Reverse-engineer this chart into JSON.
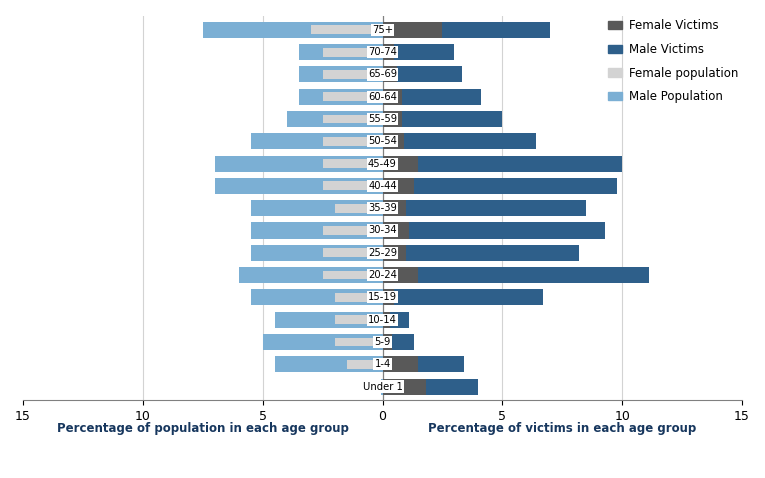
{
  "age_groups": [
    "Under 1",
    "1-4",
    "5-9",
    "10-14",
    "15-19",
    "20-24",
    "25-29",
    "30-34",
    "35-39",
    "40-44",
    "45-49",
    "50-54",
    "55-59",
    "60-64",
    "65-69",
    "70-74",
    "75+"
  ],
  "male_population": [
    0.05,
    4.5,
    5.0,
    4.5,
    5.5,
    6.0,
    5.5,
    5.5,
    5.5,
    7.0,
    7.0,
    5.5,
    4.0,
    3.5,
    3.5,
    3.5,
    7.5
  ],
  "female_population": [
    0.05,
    1.5,
    2.0,
    2.0,
    2.0,
    2.5,
    2.5,
    2.5,
    2.0,
    2.5,
    2.5,
    2.5,
    2.5,
    2.5,
    2.5,
    2.5,
    3.0
  ],
  "female_victims": [
    1.8,
    1.5,
    0.4,
    0.3,
    0.5,
    1.5,
    1.0,
    1.1,
    1.0,
    1.3,
    1.5,
    0.9,
    0.8,
    0.8,
    0.6,
    0.5,
    2.5
  ],
  "male_victims": [
    2.2,
    1.9,
    0.9,
    0.8,
    6.2,
    9.6,
    7.2,
    8.2,
    7.5,
    8.5,
    8.5,
    5.5,
    4.2,
    3.3,
    2.7,
    2.5,
    4.5
  ],
  "color_male_population": "#7BAFD4",
  "color_female_population": "#D3D3D3",
  "color_female_victims": "#595959",
  "color_male_victims": "#2E5F8A",
  "xlim": 15,
  "xlabel_left": "Percentage of population in each age group",
  "xlabel_right": "Percentage of victims in each age group",
  "legend_labels": [
    "Female Victims",
    "Male Victims",
    "Female population",
    "Male Population"
  ]
}
